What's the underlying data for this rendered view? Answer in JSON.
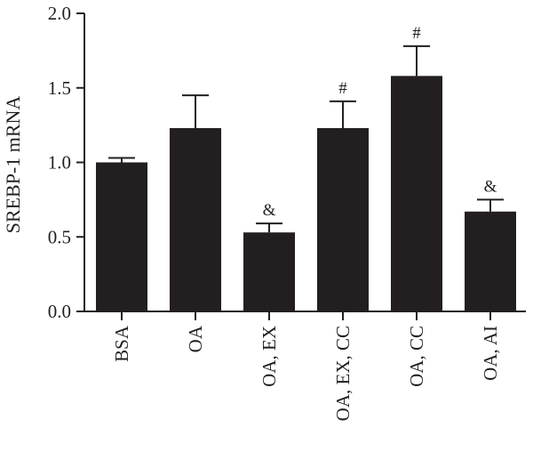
{
  "chart_data": {
    "type": "bar",
    "ylabel": "SREBP-1 mRNA",
    "xlabel": "",
    "ylim": [
      0,
      2.0
    ],
    "yticks": [
      "0.0",
      "0.5",
      "1.0",
      "1.5",
      "2.0"
    ],
    "categories": [
      "BSA",
      "OA",
      "OA, EX",
      "OA, EX, CC",
      "OA, CC",
      "OA, AI"
    ],
    "values": [
      1.0,
      1.23,
      0.53,
      1.23,
      1.58,
      0.67
    ],
    "errors": [
      0.03,
      0.22,
      0.06,
      0.18,
      0.2,
      0.08
    ],
    "annotations": [
      "",
      "",
      "&",
      "#",
      "#",
      "&"
    ],
    "bar_color": "#231f20",
    "axis_color": "#231f20",
    "grid": false
  }
}
